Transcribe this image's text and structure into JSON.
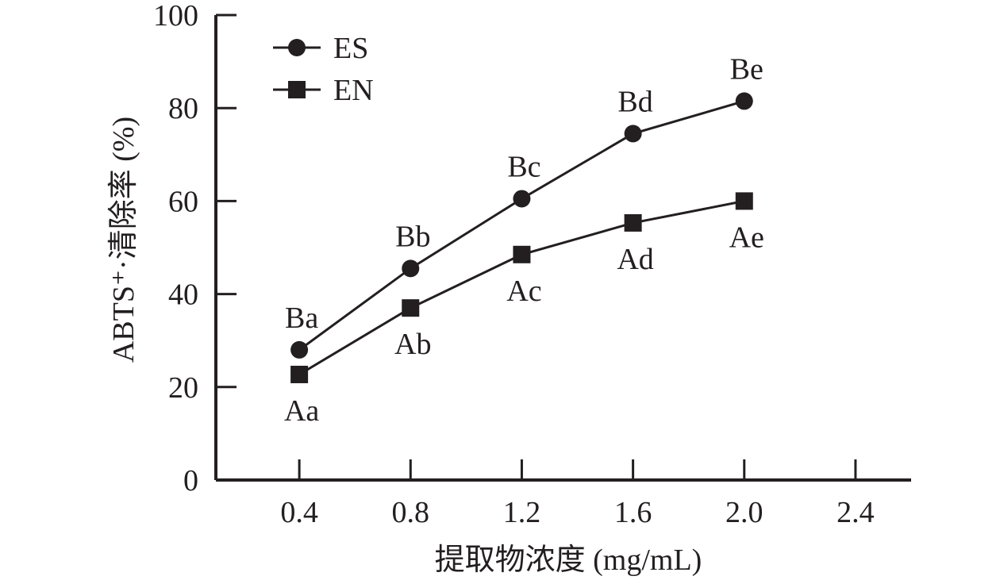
{
  "chart_data": {
    "type": "line",
    "xlabel": "提取物浓度 (mg/mL)",
    "ylabel": "ABTS⁺·清除率 (%)",
    "xlim": [
      0.1,
      2.6
    ],
    "ylim": [
      0,
      100
    ],
    "x_ticks": [
      "0.4",
      "0.8",
      "1.2",
      "1.6",
      "2.0",
      "2.4"
    ],
    "y_ticks": [
      "0",
      "20",
      "40",
      "60",
      "80",
      "100"
    ],
    "x": [
      0.4,
      0.8,
      1.2,
      1.6,
      2.0
    ],
    "legend_position": "top-left",
    "grid": false,
    "series": [
      {
        "name": "ES",
        "marker": "circle",
        "color": "#231f20",
        "values": [
          28,
          45.5,
          60.5,
          74.5,
          81.5
        ],
        "labels": [
          "Ba",
          "Bb",
          "Bc",
          "Bd",
          "Be"
        ],
        "label_position": "above"
      },
      {
        "name": "EN",
        "marker": "square",
        "color": "#231f20",
        "values": [
          22.7,
          37,
          48.5,
          55.3,
          60
        ],
        "labels": [
          "Aa",
          "Ab",
          "Ac",
          "Ad",
          "Ae"
        ],
        "label_position": "below"
      }
    ]
  }
}
